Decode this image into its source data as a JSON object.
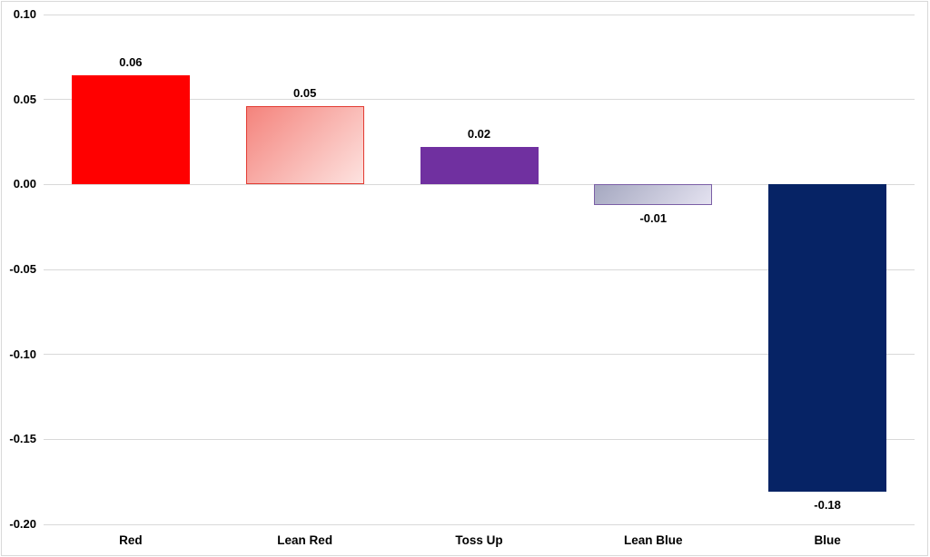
{
  "chart_data": {
    "type": "bar",
    "title": "",
    "xlabel": "",
    "ylabel": "",
    "categories": [
      "Red",
      "Lean Red",
      "Toss Up",
      "Lean Blue",
      "Blue"
    ],
    "values": [
      0.06,
      0.05,
      0.02,
      -0.01,
      -0.18
    ],
    "data_labels": [
      "0.06",
      "0.05",
      "0.02",
      "-0.01",
      "-0.18"
    ],
    "values_precise": [
      0.064,
      0.046,
      0.022,
      -0.012,
      -0.181
    ],
    "ylim": [
      -0.2,
      0.1
    ],
    "ytick_step": 0.05,
    "grid": true,
    "legend": false,
    "y_ticks": [
      {
        "value": 0.1,
        "label": "0.10"
      },
      {
        "value": 0.05,
        "label": "0.05"
      },
      {
        "value": 0.0,
        "label": "0.00"
      },
      {
        "value": -0.05,
        "label": "-0.05"
      },
      {
        "value": -0.1,
        "label": "-0.10"
      },
      {
        "value": -0.15,
        "label": "-0.15"
      },
      {
        "value": -0.2,
        "label": "-0.20"
      }
    ],
    "bar_styles": [
      {
        "category": "Red",
        "fill_from": "#ff0000",
        "fill_to": null,
        "border": "#ff0000"
      },
      {
        "category": "Lean Red",
        "fill_from": "#f4837c",
        "fill_to": "#fde3e0",
        "border": "#e23b32"
      },
      {
        "category": "Toss Up",
        "fill_from": "#7030a0",
        "fill_to": null,
        "border": "#7030a0"
      },
      {
        "category": "Lean Blue",
        "fill_from": "#a5a8c0",
        "fill_to": "#e4e2f0",
        "border": "#7b5fa6"
      },
      {
        "category": "Blue",
        "fill_from": "#062365",
        "fill_to": null,
        "border": "#062365"
      }
    ],
    "colors": {
      "grid": "#d9d9d9",
      "frame_border": "#d9d9d9",
      "axis_text": "#000000",
      "background": "#ffffff"
    }
  }
}
